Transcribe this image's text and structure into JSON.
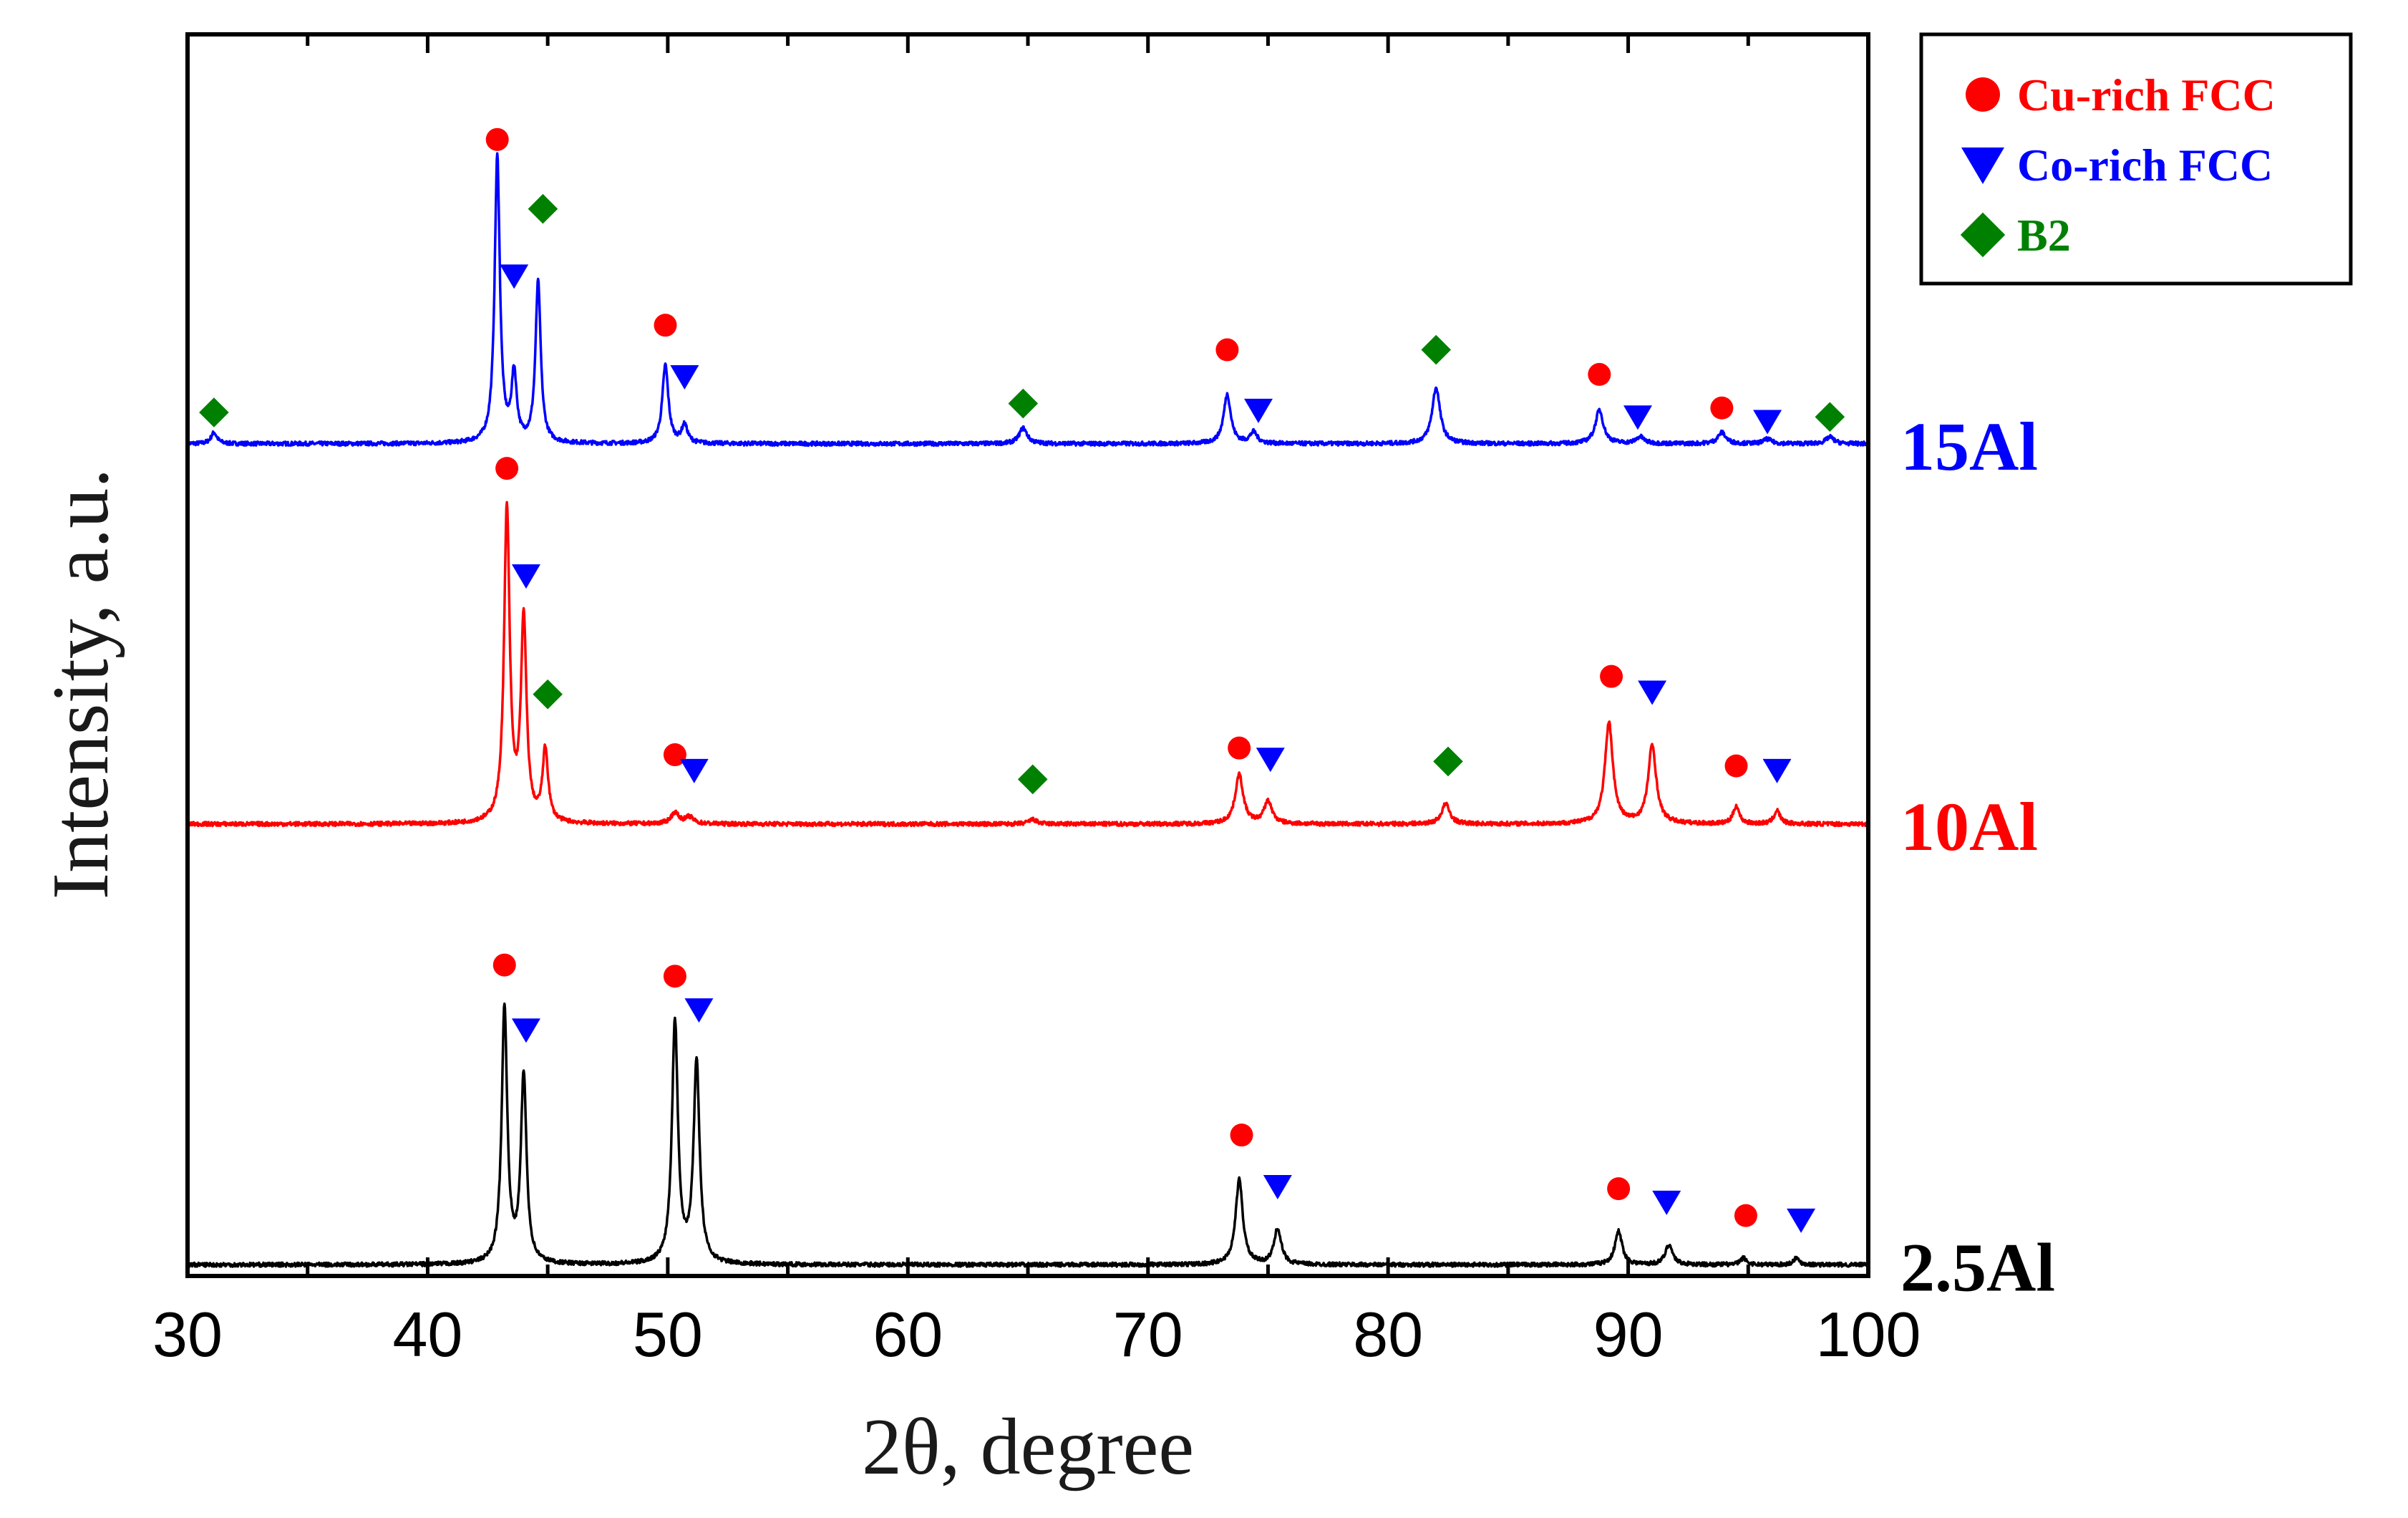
{
  "chart_data": {
    "type": "line",
    "title": "",
    "xlabel": "2θ, degree",
    "ylabel": "Intensity, a.u.",
    "xlim": [
      30,
      100
    ],
    "x_ticks": [
      30,
      40,
      50,
      60,
      70,
      80,
      90,
      100
    ],
    "x_tick_labels": [
      "30",
      "40",
      "50",
      "60",
      "70",
      "80",
      "90",
      "100"
    ],
    "y_ticks_shown": false,
    "grid": false,
    "legend_position": "top-right",
    "legend": [
      {
        "name": "Cu-rich FCC",
        "marker": "circle",
        "color": "#ff0000"
      },
      {
        "name": "Co-rich FCC",
        "marker": "triangle-down",
        "color": "#0000ff"
      },
      {
        "name": "B2",
        "marker": "diamond",
        "color": "#008000"
      }
    ],
    "series": [
      {
        "name": "15Al",
        "color": "#0000ff",
        "baseline": 3.72,
        "peaks": [
          {
            "x": 31.1,
            "h": 0.05,
            "w": 0.15
          },
          {
            "x": 42.9,
            "h": 1.28,
            "w": 0.13
          },
          {
            "x": 43.6,
            "h": 0.3,
            "w": 0.13
          },
          {
            "x": 44.6,
            "h": 0.72,
            "w": 0.13
          },
          {
            "x": 49.9,
            "h": 0.35,
            "w": 0.15
          },
          {
            "x": 50.7,
            "h": 0.08,
            "w": 0.15
          },
          {
            "x": 64.8,
            "h": 0.07,
            "w": 0.2
          },
          {
            "x": 73.3,
            "h": 0.22,
            "w": 0.18
          },
          {
            "x": 74.4,
            "h": 0.05,
            "w": 0.18
          },
          {
            "x": 82.0,
            "h": 0.25,
            "w": 0.2
          },
          {
            "x": 88.8,
            "h": 0.15,
            "w": 0.2
          },
          {
            "x": 90.5,
            "h": 0.03,
            "w": 0.2
          },
          {
            "x": 93.9,
            "h": 0.05,
            "w": 0.2
          },
          {
            "x": 95.8,
            "h": 0.02,
            "w": 0.2
          },
          {
            "x": 98.4,
            "h": 0.03,
            "w": 0.2
          }
        ],
        "markers": [
          {
            "phase": "B2",
            "x": 31.1,
            "y": 3.86
          },
          {
            "phase": "Cu-rich FCC",
            "x": 42.9,
            "y": 5.08
          },
          {
            "phase": "Co-rich FCC",
            "x": 43.6,
            "y": 4.47
          },
          {
            "phase": "B2",
            "x": 44.8,
            "y": 4.77
          },
          {
            "phase": "Cu-rich FCC",
            "x": 49.9,
            "y": 4.25
          },
          {
            "phase": "Co-rich FCC",
            "x": 50.7,
            "y": 4.02
          },
          {
            "phase": "B2",
            "x": 64.8,
            "y": 3.9
          },
          {
            "phase": "Cu-rich FCC",
            "x": 73.3,
            "y": 4.14
          },
          {
            "phase": "Co-rich FCC",
            "x": 74.6,
            "y": 3.87
          },
          {
            "phase": "B2",
            "x": 82.0,
            "y": 4.14
          },
          {
            "phase": "Cu-rich FCC",
            "x": 88.8,
            "y": 4.03
          },
          {
            "phase": "Co-rich FCC",
            "x": 90.4,
            "y": 3.84
          },
          {
            "phase": "Cu-rich FCC",
            "x": 93.9,
            "y": 3.88
          },
          {
            "phase": "Co-rich FCC",
            "x": 95.8,
            "y": 3.82
          },
          {
            "phase": "B2",
            "x": 98.4,
            "y": 3.84
          }
        ]
      },
      {
        "name": "10Al",
        "color": "#ff0000",
        "baseline": 2.02,
        "peaks": [
          {
            "x": 43.3,
            "h": 1.4,
            "w": 0.14
          },
          {
            "x": 44.0,
            "h": 0.9,
            "w": 0.14
          },
          {
            "x": 44.9,
            "h": 0.32,
            "w": 0.14
          },
          {
            "x": 50.3,
            "h": 0.05,
            "w": 0.2
          },
          {
            "x": 50.9,
            "h": 0.03,
            "w": 0.2
          },
          {
            "x": 65.2,
            "h": 0.02,
            "w": 0.2
          },
          {
            "x": 73.8,
            "h": 0.22,
            "w": 0.2
          },
          {
            "x": 75.0,
            "h": 0.1,
            "w": 0.2
          },
          {
            "x": 82.4,
            "h": 0.09,
            "w": 0.2
          },
          {
            "x": 89.2,
            "h": 0.45,
            "w": 0.2
          },
          {
            "x": 91.0,
            "h": 0.35,
            "w": 0.2
          },
          {
            "x": 94.5,
            "h": 0.08,
            "w": 0.15
          },
          {
            "x": 96.2,
            "h": 0.06,
            "w": 0.15
          }
        ],
        "markers": [
          {
            "phase": "Cu-rich FCC",
            "x": 43.3,
            "y": 3.61
          },
          {
            "phase": "Co-rich FCC",
            "x": 44.1,
            "y": 3.13
          },
          {
            "phase": "B2",
            "x": 45.0,
            "y": 2.6
          },
          {
            "phase": "Cu-rich FCC",
            "x": 50.3,
            "y": 2.33
          },
          {
            "phase": "Co-rich FCC",
            "x": 51.1,
            "y": 2.26
          },
          {
            "phase": "B2",
            "x": 65.2,
            "y": 2.22
          },
          {
            "phase": "Cu-rich FCC",
            "x": 73.8,
            "y": 2.36
          },
          {
            "phase": "Co-rich FCC",
            "x": 75.1,
            "y": 2.31
          },
          {
            "phase": "B2",
            "x": 82.5,
            "y": 2.3
          },
          {
            "phase": "Cu-rich FCC",
            "x": 89.3,
            "y": 2.68
          },
          {
            "phase": "Co-rich FCC",
            "x": 91.0,
            "y": 2.61
          },
          {
            "phase": "Cu-rich FCC",
            "x": 94.5,
            "y": 2.28
          },
          {
            "phase": "Co-rich FCC",
            "x": 96.2,
            "y": 2.26
          }
        ]
      },
      {
        "name": "2.5Al",
        "color": "#000000",
        "baseline": 0.05,
        "peaks": [
          {
            "x": 43.2,
            "h": 1.14,
            "w": 0.14
          },
          {
            "x": 44.0,
            "h": 0.84,
            "w": 0.14
          },
          {
            "x": 50.3,
            "h": 1.08,
            "w": 0.15
          },
          {
            "x": 51.2,
            "h": 0.9,
            "w": 0.15
          },
          {
            "x": 73.8,
            "h": 0.38,
            "w": 0.18
          },
          {
            "x": 75.4,
            "h": 0.16,
            "w": 0.18
          },
          {
            "x": 89.6,
            "h": 0.15,
            "w": 0.18
          },
          {
            "x": 91.7,
            "h": 0.09,
            "w": 0.18
          },
          {
            "x": 94.8,
            "h": 0.03,
            "w": 0.15
          },
          {
            "x": 97.0,
            "h": 0.03,
            "w": 0.15
          }
        ],
        "markers": [
          {
            "phase": "Cu-rich FCC",
            "x": 43.2,
            "y": 1.39
          },
          {
            "phase": "Co-rich FCC",
            "x": 44.1,
            "y": 1.1
          },
          {
            "phase": "Cu-rich FCC",
            "x": 50.3,
            "y": 1.34
          },
          {
            "phase": "Co-rich FCC",
            "x": 51.3,
            "y": 1.19
          },
          {
            "phase": "Cu-rich FCC",
            "x": 73.9,
            "y": 0.63
          },
          {
            "phase": "Co-rich FCC",
            "x": 75.4,
            "y": 0.4
          },
          {
            "phase": "Cu-rich FCC",
            "x": 89.6,
            "y": 0.39
          },
          {
            "phase": "Co-rich FCC",
            "x": 91.6,
            "y": 0.33
          },
          {
            "phase": "Cu-rich FCC",
            "x": 94.9,
            "y": 0.27
          },
          {
            "phase": "Co-rich FCC",
            "x": 97.2,
            "y": 0.25
          }
        ]
      }
    ]
  }
}
